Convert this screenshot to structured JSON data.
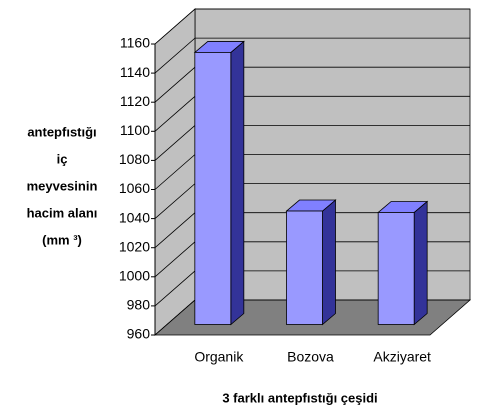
{
  "chart_data": {
    "type": "bar3d",
    "x_label": "3 farklı antepfıstığı çeşidi",
    "y_label": [
      "antepfıstığı",
      "iç",
      "meyvesinin",
      "hacim alanı",
      "(mm ³)"
    ],
    "categories": [
      "Organik",
      "Bozova",
      "Akziyaret"
    ],
    "values": [
      1147,
      1038,
      1037
    ],
    "color": "#9999ff",
    "ylim": [
      960,
      1160
    ],
    "yticks": [
      960,
      980,
      1000,
      1020,
      1040,
      1060,
      1080,
      1100,
      1120,
      1140,
      1160
    ],
    "grid": true
  }
}
